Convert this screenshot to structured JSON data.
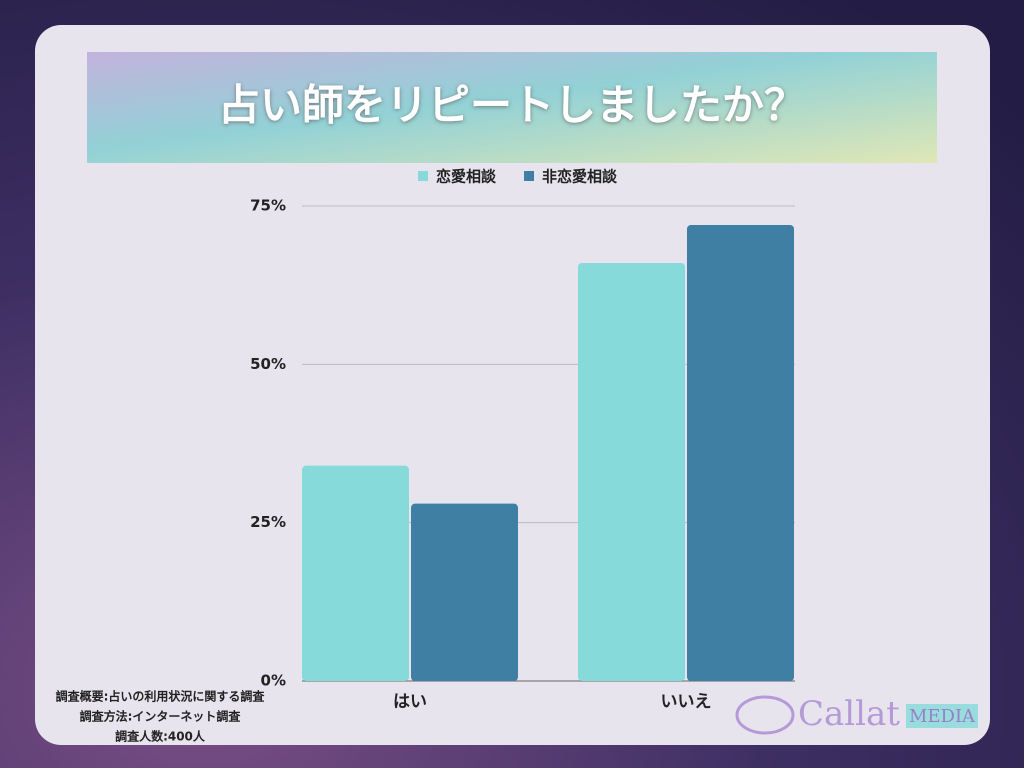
{
  "chart_data": {
    "type": "bar",
    "title": "占い師をリピートしましたか？",
    "categories": [
      "はい",
      "いいえ"
    ],
    "series": [
      {
        "name": "恋愛相談",
        "color": "#86dad9",
        "values": [
          34,
          66
        ]
      },
      {
        "name": "非恋愛相談",
        "color": "#3f7fa3",
        "values": [
          28,
          72
        ]
      }
    ],
    "ylim": [
      0,
      75
    ],
    "yticks": [
      {
        "value": 0,
        "label": "0%"
      },
      {
        "value": 25,
        "label": "25%"
      },
      {
        "value": 50,
        "label": "50%"
      },
      {
        "value": 75,
        "label": "75%"
      }
    ],
    "grid": true,
    "legend": "top",
    "notes": [
      "調査概要:占いの利用状況に関する調査",
      "調査方法:インターネット調査",
      "調査人数:400人"
    ],
    "logo": {
      "name": "Callat",
      "tag": "MEDIA"
    }
  }
}
